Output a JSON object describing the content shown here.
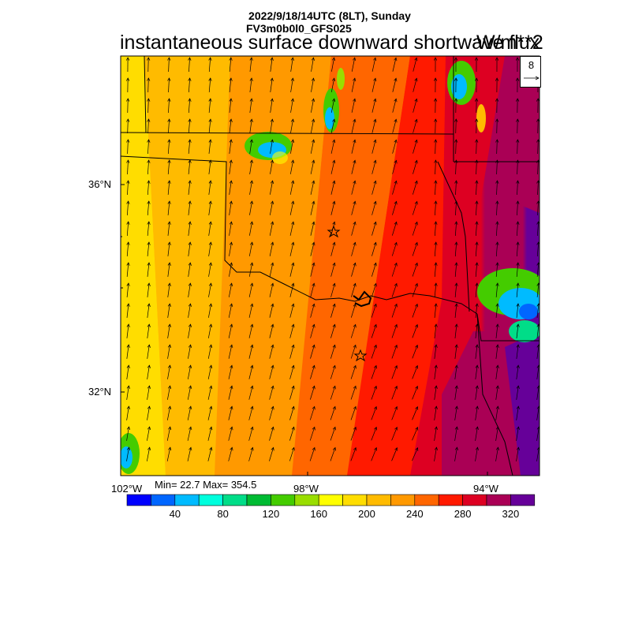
{
  "header": {
    "date_line": "2022/9/18/14UTC (8LT), Sunday",
    "model_line": "FV3m0b0l0_GFS025",
    "title": "instantaneous surface downward shortwave flux",
    "units": "W/m**2"
  },
  "reference_vector": {
    "label": "8"
  },
  "map": {
    "lat_labels": [
      "36°N",
      "32°N"
    ],
    "lon_labels": [
      "102°W",
      "98°W",
      "94°W"
    ],
    "markers": [
      "star",
      "star"
    ],
    "stats": "Min= 22.7 Max= 354.5"
  },
  "colorbar": {
    "colors": [
      "#0000ff",
      "#0066ff",
      "#00bbff",
      "#00ffdd",
      "#00dd88",
      "#00bb33",
      "#44cc00",
      "#99dd00",
      "#ffff00",
      "#ffdd00",
      "#ffbb00",
      "#ff9900",
      "#ff6600",
      "#ff1a00",
      "#dd0022",
      "#aa0055",
      "#660099"
    ],
    "labels": [
      "40",
      "80",
      "120",
      "160",
      "200",
      "240",
      "280",
      "320"
    ]
  }
}
